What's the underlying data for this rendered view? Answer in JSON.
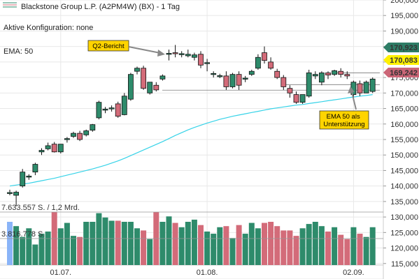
{
  "header": {
    "title": "Blackstone Group L.P. (A2PM4W) (BX) - 1 Tag",
    "config": "Aktive Konfiguration: none",
    "ema_label": "EMA: 50"
  },
  "colors": {
    "up": "#2e8b6b",
    "down": "#d36b79",
    "ema": "#36d3e8",
    "vol_first": "#8ab4f8",
    "badge_green": "#2e7d66",
    "badge_yellow": "#fff000",
    "badge_red": "#cc6677",
    "annot": "#ffd400"
  },
  "chart_data": {
    "type": "candlestick",
    "y_axis": {
      "min": 110000,
      "max": 200000,
      "ticks": [
        110000,
        115000,
        120000,
        125000,
        130000,
        135000,
        140000,
        145000,
        150000,
        155000,
        160000,
        165000,
        170000,
        175000,
        180000,
        185000,
        190000,
        195000,
        200000
      ],
      "tick_labels": [
        "",
        "115,000",
        "120,000",
        "125,000",
        "130,000",
        "135,000",
        "140,000",
        "145,000",
        "150,000",
        "155,000",
        "160,000",
        "165,000",
        "170,000",
        "175,000",
        "180,000",
        "185,000",
        "190,000",
        "195,000",
        "200,000"
      ]
    },
    "x_labels": [
      {
        "index": 8,
        "label": "01.07."
      },
      {
        "index": 31,
        "label": "01.08."
      },
      {
        "index": 54,
        "label": "02.09."
      }
    ],
    "candles": [
      {
        "o": 137800,
        "h": 138800,
        "l": 137000,
        "c": 137900
      },
      {
        "o": 137000,
        "h": 138500,
        "l": 133500,
        "c": 138000
      },
      {
        "o": 140000,
        "h": 145500,
        "l": 139500,
        "c": 144500
      },
      {
        "o": 143000,
        "h": 143800,
        "l": 142000,
        "c": 143200
      },
      {
        "o": 144500,
        "h": 147500,
        "l": 143500,
        "c": 147000
      },
      {
        "o": 151000,
        "h": 152200,
        "l": 150000,
        "c": 151500
      },
      {
        "o": 152000,
        "h": 154000,
        "l": 151500,
        "c": 153000
      },
      {
        "o": 153500,
        "h": 154200,
        "l": 150800,
        "c": 151000
      },
      {
        "o": 151000,
        "h": 153500,
        "l": 150500,
        "c": 153500
      },
      {
        "o": 155000,
        "h": 155800,
        "l": 154000,
        "c": 155300
      },
      {
        "o": 156000,
        "h": 157500,
        "l": 155500,
        "c": 157000
      },
      {
        "o": 157000,
        "h": 157800,
        "l": 154500,
        "c": 155000
      },
      {
        "o": 156500,
        "h": 158200,
        "l": 156000,
        "c": 157800
      },
      {
        "o": 158000,
        "h": 160000,
        "l": 157500,
        "c": 159800
      },
      {
        "o": 162000,
        "h": 167500,
        "l": 161500,
        "c": 167000
      },
      {
        "o": 164500,
        "h": 165500,
        "l": 163500,
        "c": 164800
      },
      {
        "o": 165000,
        "h": 166000,
        "l": 164000,
        "c": 165200
      },
      {
        "o": 166500,
        "h": 167200,
        "l": 162000,
        "c": 162500
      },
      {
        "o": 163000,
        "h": 170000,
        "l": 162800,
        "c": 169000
      },
      {
        "o": 168000,
        "h": 176500,
        "l": 167500,
        "c": 176000
      },
      {
        "o": 177000,
        "h": 178500,
        "l": 176000,
        "c": 178000
      },
      {
        "o": 178000,
        "h": 178800,
        "l": 171000,
        "c": 171500
      },
      {
        "o": 170000,
        "h": 173500,
        "l": 169500,
        "c": 173500
      },
      {
        "o": 172500,
        "h": 173500,
        "l": 170500,
        "c": 171000
      },
      {
        "o": 174500,
        "h": 176000,
        "l": 174000,
        "c": 175500
      },
      {
        "o": 182500,
        "h": 184000,
        "l": 180500,
        "c": 182800
      },
      {
        "o": 183000,
        "h": 185500,
        "l": 181500,
        "c": 182800
      },
      {
        "o": 182500,
        "h": 183500,
        "l": 181500,
        "c": 182700
      },
      {
        "o": 182000,
        "h": 184000,
        "l": 181500,
        "c": 182500
      },
      {
        "o": 181500,
        "h": 183000,
        "l": 180500,
        "c": 182300
      },
      {
        "o": 182500,
        "h": 183500,
        "l": 178000,
        "c": 179000
      },
      {
        "o": 179500,
        "h": 181000,
        "l": 177000,
        "c": 179800
      },
      {
        "o": 176000,
        "h": 177000,
        "l": 175000,
        "c": 176300
      },
      {
        "o": 175500,
        "h": 176200,
        "l": 174800,
        "c": 175600
      },
      {
        "o": 175500,
        "h": 177000,
        "l": 171000,
        "c": 172000
      },
      {
        "o": 172000,
        "h": 176500,
        "l": 171500,
        "c": 176000
      },
      {
        "o": 176000,
        "h": 177000,
        "l": 171000,
        "c": 172500
      },
      {
        "o": 174500,
        "h": 175500,
        "l": 173500,
        "c": 174800
      },
      {
        "o": 176000,
        "h": 177500,
        "l": 175500,
        "c": 177000
      },
      {
        "o": 178000,
        "h": 182500,
        "l": 177500,
        "c": 181500
      },
      {
        "o": 183000,
        "h": 185000,
        "l": 179500,
        "c": 180500
      },
      {
        "o": 180000,
        "h": 181500,
        "l": 177500,
        "c": 178000
      },
      {
        "o": 177000,
        "h": 177800,
        "l": 174500,
        "c": 175000
      },
      {
        "o": 175000,
        "h": 175800,
        "l": 171000,
        "c": 172000
      },
      {
        "o": 171500,
        "h": 172500,
        "l": 168500,
        "c": 170000
      },
      {
        "o": 169500,
        "h": 170500,
        "l": 166500,
        "c": 167000
      },
      {
        "o": 167000,
        "h": 169500,
        "l": 166500,
        "c": 169500
      },
      {
        "o": 169000,
        "h": 177500,
        "l": 168500,
        "c": 176500
      },
      {
        "o": 175500,
        "h": 177000,
        "l": 174500,
        "c": 176000
      },
      {
        "o": 173500,
        "h": 177000,
        "l": 172500,
        "c": 176500
      },
      {
        "o": 176500,
        "h": 177000,
        "l": 174500,
        "c": 175800
      },
      {
        "o": 176000,
        "h": 177500,
        "l": 175500,
        "c": 177200
      },
      {
        "o": 177000,
        "h": 178000,
        "l": 175000,
        "c": 176000
      },
      {
        "o": 176000,
        "h": 177000,
        "l": 174500,
        "c": 175500
      },
      {
        "o": 169500,
        "h": 174000,
        "l": 167500,
        "c": 173500
      },
      {
        "o": 173000,
        "h": 174000,
        "l": 169000,
        "c": 170000
      },
      {
        "o": 170000,
        "h": 174000,
        "l": 170000,
        "c": 173500
      },
      {
        "o": 170500,
        "h": 175000,
        "l": 170000,
        "c": 174500
      }
    ],
    "ema50": [
      140000,
      140300,
      140600,
      140900,
      141300,
      141700,
      142100,
      142500,
      143000,
      143500,
      144000,
      144500,
      145000,
      145500,
      146100,
      146700,
      147400,
      148100,
      148900,
      149800,
      150700,
      151600,
      152500,
      153400,
      154300,
      155300,
      156300,
      157200,
      158100,
      158900,
      159600,
      160300,
      160900,
      161500,
      162000,
      162500,
      162900,
      163300,
      163700,
      164100,
      164500,
      164900,
      165200,
      165500,
      165800,
      166100,
      166300,
      166600,
      166900,
      167200,
      167500,
      167800,
      168100,
      168400,
      168700,
      169000,
      169200,
      169500
    ],
    "volume": [
      40,
      36,
      26,
      34,
      19,
      29,
      31,
      49,
      34,
      39,
      27,
      26,
      40,
      40,
      48,
      44,
      41,
      41,
      40,
      40,
      34,
      32,
      24,
      49,
      40,
      45,
      39,
      35,
      40,
      42,
      37,
      31,
      29,
      35,
      36,
      25,
      37,
      29,
      39,
      34,
      39,
      40,
      36,
      32,
      32,
      27,
      34,
      38,
      40,
      36,
      31,
      35,
      28,
      24,
      35,
      29,
      26,
      35
    ],
    "volume_labels": [
      "7.633.557 S. / 1,2 Mrd.",
      "3.816.778 S."
    ],
    "reference_lines": [
      170923,
      172700,
      176500
    ]
  },
  "price_badges": [
    {
      "value": 170923,
      "label": "170,923",
      "style": "green"
    },
    {
      "value": 170083,
      "label": "170,083",
      "style": "yellow"
    },
    {
      "value": 169242,
      "label": "169,242",
      "style": "red"
    }
  ],
  "annotations": [
    {
      "text": "Q2-Bericht"
    },
    {
      "text": "EMA 50 als\nUnterstützung"
    }
  ]
}
